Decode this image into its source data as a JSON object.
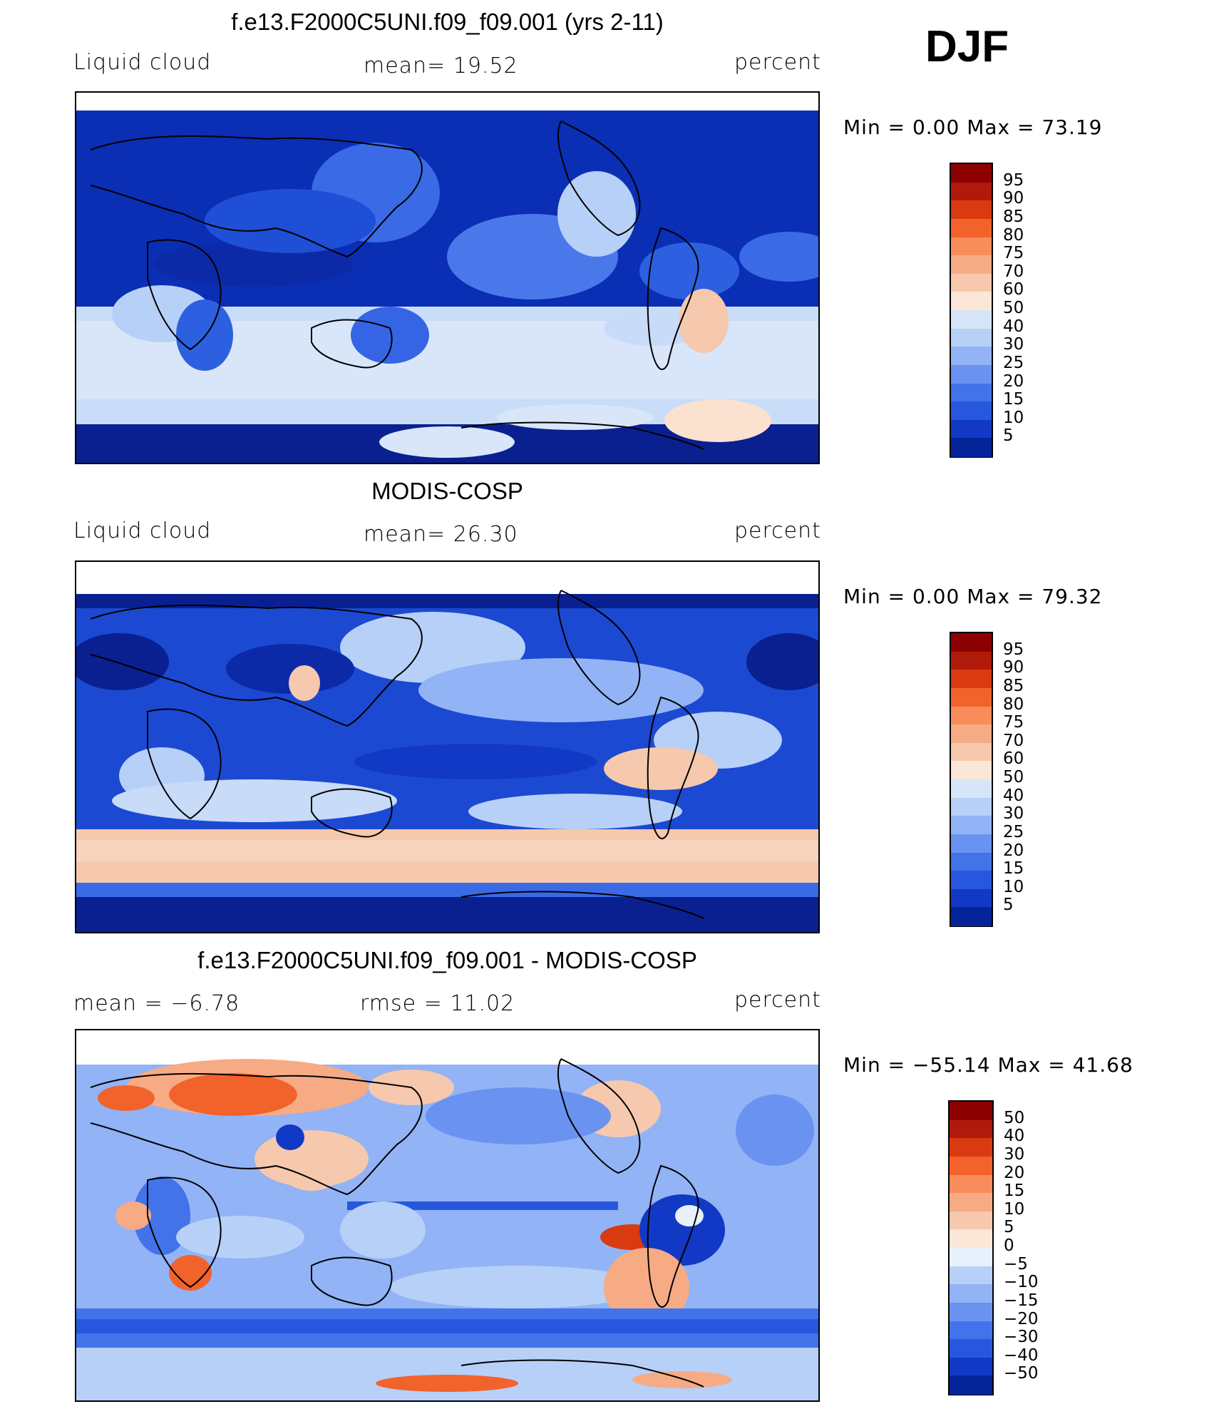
{
  "season": "DJF",
  "panels": [
    {
      "title": "f.e13.F2000C5UNI.f09_f09.001 (yrs 2-11)",
      "left_label": "Liquid cloud",
      "mean_text": "mean=   19.52",
      "units": "percent",
      "minmax": "Min  =     0.00  Max  =    73.19",
      "scale": "abs"
    },
    {
      "title": "MODIS-COSP",
      "left_label": "Liquid cloud",
      "mean_text": "mean=   26.30",
      "units": "percent",
      "minmax": "Min  =     0.00  Max  =    79.32",
      "scale": "abs"
    },
    {
      "title": "f.e13.F2000C5UNI.f09_f09.001 - MODIS-COSP",
      "left_label": "mean  =    −6.78",
      "mean_text": "rmse  =    11.02",
      "units": "percent",
      "minmax": "Min  = −55.14  Max  =    41.68",
      "scale": "diff"
    }
  ],
  "colorbars": {
    "abs": {
      "labels": [
        "95",
        "90",
        "85",
        "80",
        "75",
        "70",
        "60",
        "50",
        "40",
        "30",
        "25",
        "20",
        "15",
        "10",
        "5"
      ],
      "colors": [
        "#8b0000",
        "#b01a0a",
        "#d93a10",
        "#f2622b",
        "#f88c5a",
        "#f6ab85",
        "#f6c8ad",
        "#fbe6d8",
        "#d6e6f8",
        "#b7d0f7",
        "#92b3f5",
        "#6a92f1",
        "#4273e9",
        "#2757dc",
        "#1239c5",
        "#06249a"
      ]
    },
    "diff": {
      "labels": [
        "50",
        "40",
        "30",
        "20",
        "15",
        "10",
        "5",
        "0",
        "−5",
        "−10",
        "−15",
        "−20",
        "−30",
        "−40",
        "−50"
      ],
      "colors": [
        "#8b0000",
        "#b01a0a",
        "#d93a10",
        "#f2622b",
        "#f88c5a",
        "#f6ab85",
        "#f6c8ad",
        "#fbe6d8",
        "#e8f0fb",
        "#b7d0f7",
        "#92b3f5",
        "#6a92f1",
        "#4273e9",
        "#2757dc",
        "#1239c5",
        "#06249a"
      ]
    }
  }
}
